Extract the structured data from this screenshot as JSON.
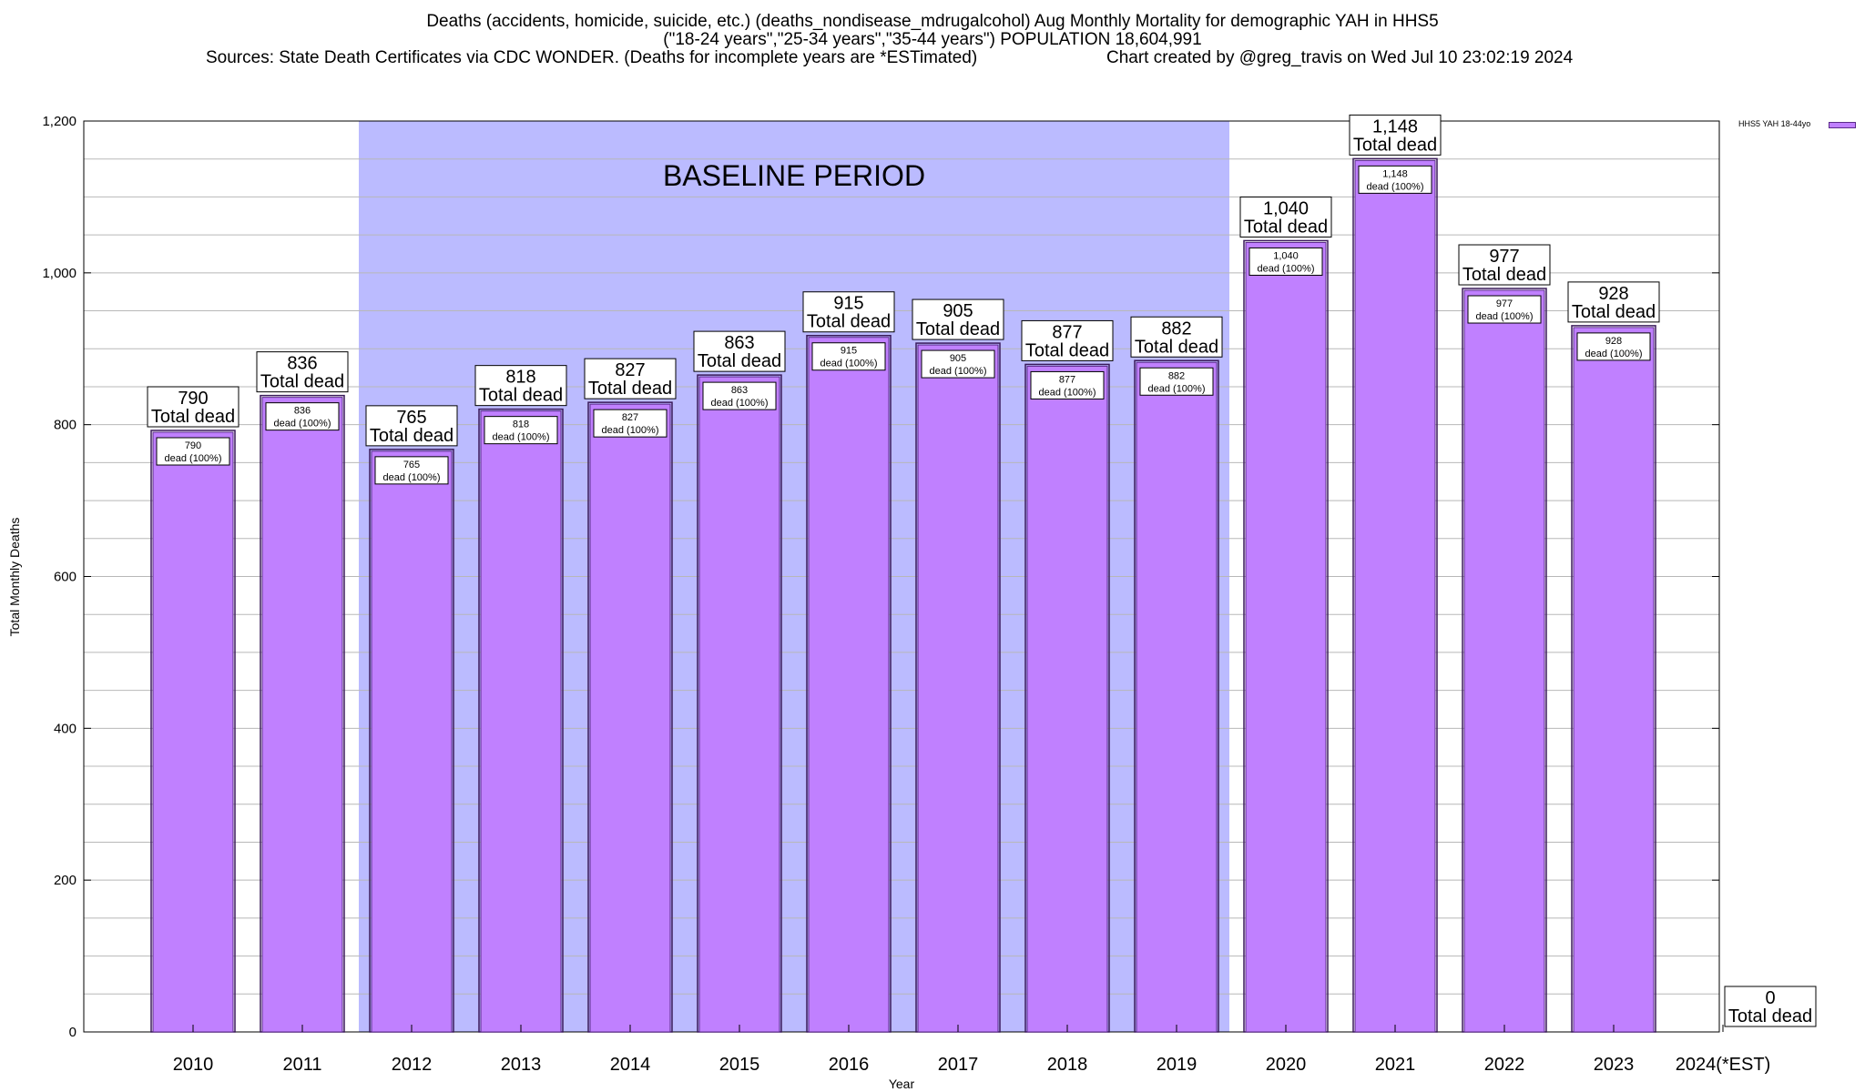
{
  "header": {
    "line1": "Deaths (accidents, homicide, suicide, etc.) (deaths_nondisease_mdrugalcohol) Aug Monthly Mortality for demographic YAH in HHS5",
    "line2": "(\"18-24 years\",\"25-34 years\",\"35-44 years\") POPULATION 18,604,991",
    "line3_left": "Sources: State Death Certificates via CDC WONDER. (Deaths for incomplete years are *ESTimated)",
    "line3_right": "Chart created by @greg_travis on Wed Jul 10 23:02:19 2024"
  },
  "legend": {
    "label": "HHS5 YAH 18-44yo"
  },
  "colors": {
    "bar": "#c080ff",
    "bar_border": "#3a1a5a",
    "baseline": "#bbbbff"
  },
  "chart_data": {
    "type": "bar",
    "title": "Deaths (accidents, homicide, suicide, etc.) (deaths_nondisease_mdrugalcohol) Aug Monthly Mortality for demographic YAH in HHS5",
    "xlabel": "Year",
    "ylabel": "Total Monthly Deaths",
    "ylim": [
      0,
      1200
    ],
    "yticks": [
      "0",
      "200",
      "400",
      "600",
      "800",
      "1,000",
      "1,200"
    ],
    "grid": true,
    "legend_position": "top-right",
    "categories": [
      "2010",
      "2011",
      "2012",
      "2013",
      "2014",
      "2015",
      "2016",
      "2017",
      "2018",
      "2019",
      "2020",
      "2021",
      "2022",
      "2023",
      "2024(*EST)"
    ],
    "series": [
      {
        "name": "HHS5 YAH 18-44yo",
        "values": [
          790,
          836,
          765,
          818,
          827,
          863,
          915,
          905,
          877,
          882,
          1040,
          1148,
          977,
          928,
          0
        ]
      }
    ],
    "top_labels": [
      "790",
      "836",
      "765",
      "818",
      "827",
      "863",
      "915",
      "905",
      "877",
      "882",
      "1,040",
      "1,148",
      "977",
      "928",
      "0"
    ],
    "total_label": "Total dead",
    "inner_label": "dead (100%)",
    "baseline_period": {
      "label": "BASELINE PERIOD",
      "from": "2012",
      "to": "2019"
    }
  }
}
